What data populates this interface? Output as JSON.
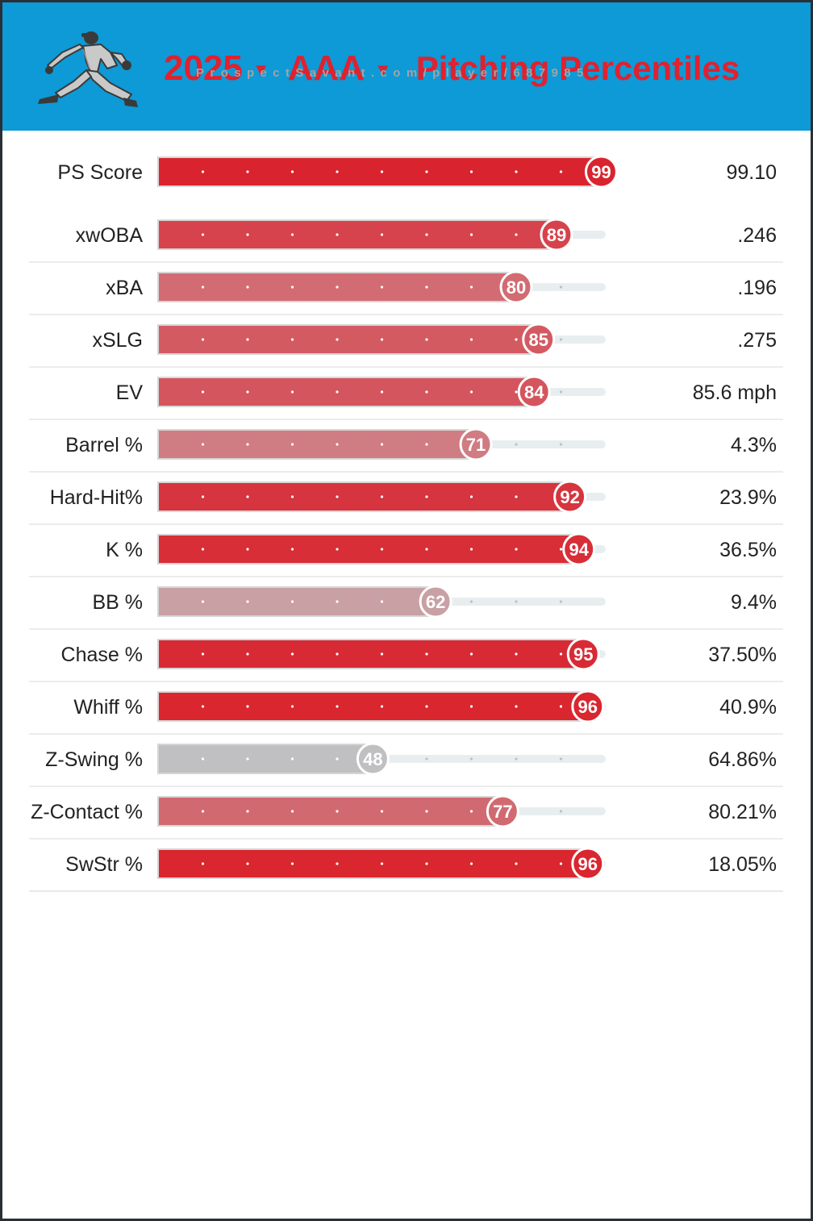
{
  "header": {
    "season": "2025",
    "level": "AAA",
    "title": "Pitching Percentiles",
    "icon": "pitcher-icon"
  },
  "watermark": "ProspectSavant.com/player/687985",
  "colors": {
    "header_bg": "#0d9ad6",
    "title": "#e0212f",
    "track": "#e8eef0",
    "high": "#d9242f",
    "mid": "#c97a7f",
    "low": "#c0c0c3"
  },
  "chart_data": {
    "type": "bar",
    "orientation": "horizontal",
    "title": "Pitching Percentiles",
    "xlim": [
      0,
      100
    ],
    "categories": [
      "PS Score",
      "xwOBA",
      "xBA",
      "xSLG",
      "EV",
      "Barrel %",
      "Hard-Hit%",
      "K %",
      "BB %",
      "Chase %",
      "Whiff %",
      "Z-Swing %",
      "Z-Contact %",
      "SwStr %"
    ],
    "percentiles": [
      99,
      89,
      80,
      85,
      84,
      71,
      92,
      94,
      62,
      95,
      96,
      48,
      77,
      96
    ],
    "stat_values": [
      "99.10",
      ".246",
      ".196",
      ".275",
      "85.6 mph",
      "4.3%",
      "23.9%",
      "36.5%",
      "9.4%",
      "37.50%",
      "40.9%",
      "64.86%",
      "80.21%",
      "18.05%"
    ],
    "bar_colors": [
      "#d9242f",
      "#d6434c",
      "#d26c72",
      "#d45a62",
      "#d4555d",
      "#cf7c82",
      "#d6343e",
      "#d72e38",
      "#c9a0a4",
      "#d82a35",
      "#d9262f",
      "#c0c0c3",
      "#d16a70",
      "#d9262f"
    ]
  }
}
